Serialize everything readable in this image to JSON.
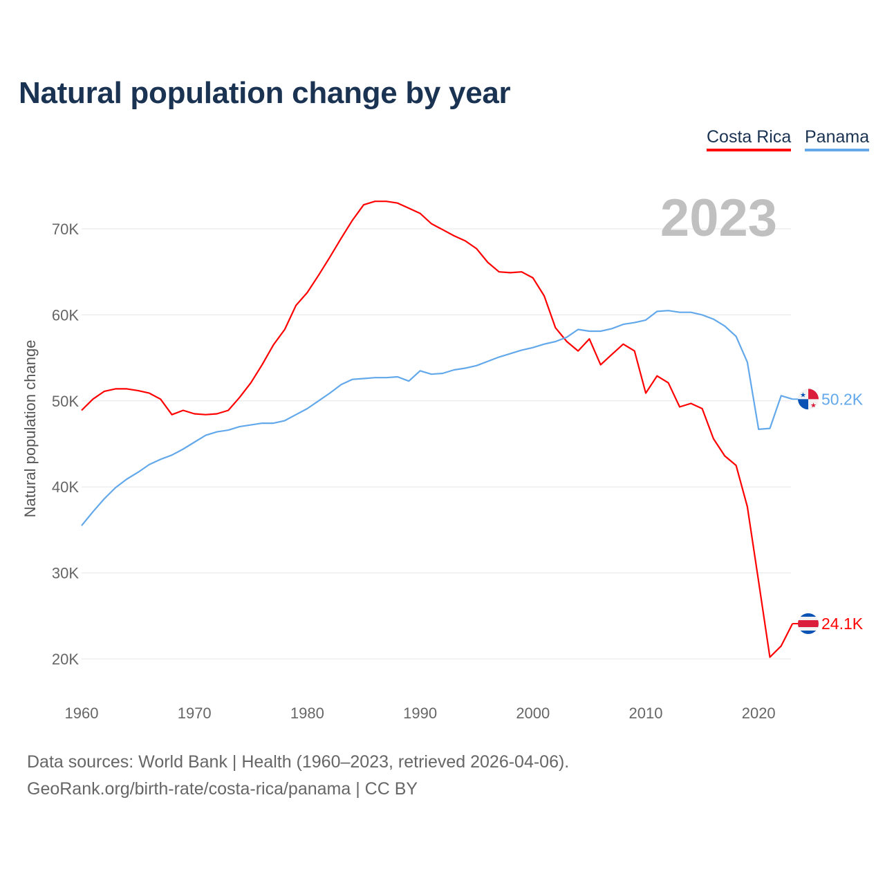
{
  "title": "Natural population change by year",
  "legend": [
    {
      "name": "Costa Rica",
      "color": "#ff0000"
    },
    {
      "name": "Panama",
      "color": "#62a8ea"
    }
  ],
  "footer": {
    "line1": "Data sources: World Bank | Health (1960–2023, retrieved 2026-04-06).",
    "line2": "GeoRank.org/birth-rate/costa-rica/panama | CC BY"
  },
  "chart_data": {
    "type": "line",
    "title": "Natural population change by year",
    "xlabel": "",
    "ylabel": "Natural population change",
    "year_watermark": "2023",
    "xlim": [
      1960,
      2023
    ],
    "ylim": [
      15000,
      75000
    ],
    "x_ticks": [
      1960,
      1970,
      1980,
      1990,
      2000,
      2010,
      2020
    ],
    "x_tick_labels": [
      "1960",
      "1970",
      "1980",
      "1990",
      "2000",
      "2010",
      "2020"
    ],
    "y_ticks": [
      20000,
      30000,
      40000,
      50000,
      60000,
      70000
    ],
    "y_tick_labels": [
      "20K",
      "30K",
      "40K",
      "50K",
      "60K",
      "70K"
    ],
    "grid": true,
    "legend_position": "top-right",
    "x_start": 1960,
    "series": [
      {
        "name": "Costa Rica",
        "color": "#ff0000",
        "end_label": "24.1K",
        "flag": "costa-rica",
        "values": [
          48900,
          50200,
          51100,
          51400,
          51400,
          51200,
          50900,
          50200,
          48400,
          48900,
          48500,
          48400,
          48500,
          48900,
          50400,
          52100,
          54200,
          56500,
          58300,
          61100,
          62600,
          64600,
          66700,
          68900,
          71000,
          72800,
          73200,
          73200,
          73000,
          72400,
          71800,
          70600,
          69900,
          69200,
          68600,
          67700,
          66100,
          65000,
          64900,
          65000,
          64300,
          62200,
          58500,
          56900,
          55800,
          57200,
          54200,
          55400,
          56600,
          55800,
          50900,
          52900,
          52100,
          49300,
          49700,
          49100,
          45600,
          43600,
          42500,
          37700,
          29000,
          20200,
          21500,
          24100
        ]
      },
      {
        "name": "Panama",
        "color": "#62a8ea",
        "end_label": "50.2K",
        "flag": "panama",
        "values": [
          35500,
          37100,
          38600,
          39900,
          40900,
          41700,
          42600,
          43200,
          43700,
          44400,
          45200,
          46000,
          46400,
          46600,
          47000,
          47200,
          47400,
          47400,
          47700,
          48400,
          49100,
          50000,
          50900,
          51900,
          52500,
          52600,
          52700,
          52700,
          52800,
          52300,
          53500,
          53100,
          53200,
          53600,
          53800,
          54100,
          54600,
          55100,
          55500,
          55900,
          56200,
          56600,
          56900,
          57400,
          58300,
          58100,
          58100,
          58400,
          58900,
          59100,
          59400,
          60400,
          60500,
          60300,
          60300,
          60000,
          59500,
          58700,
          57500,
          54500,
          46700,
          46800,
          50600,
          50200
        ]
      }
    ]
  }
}
